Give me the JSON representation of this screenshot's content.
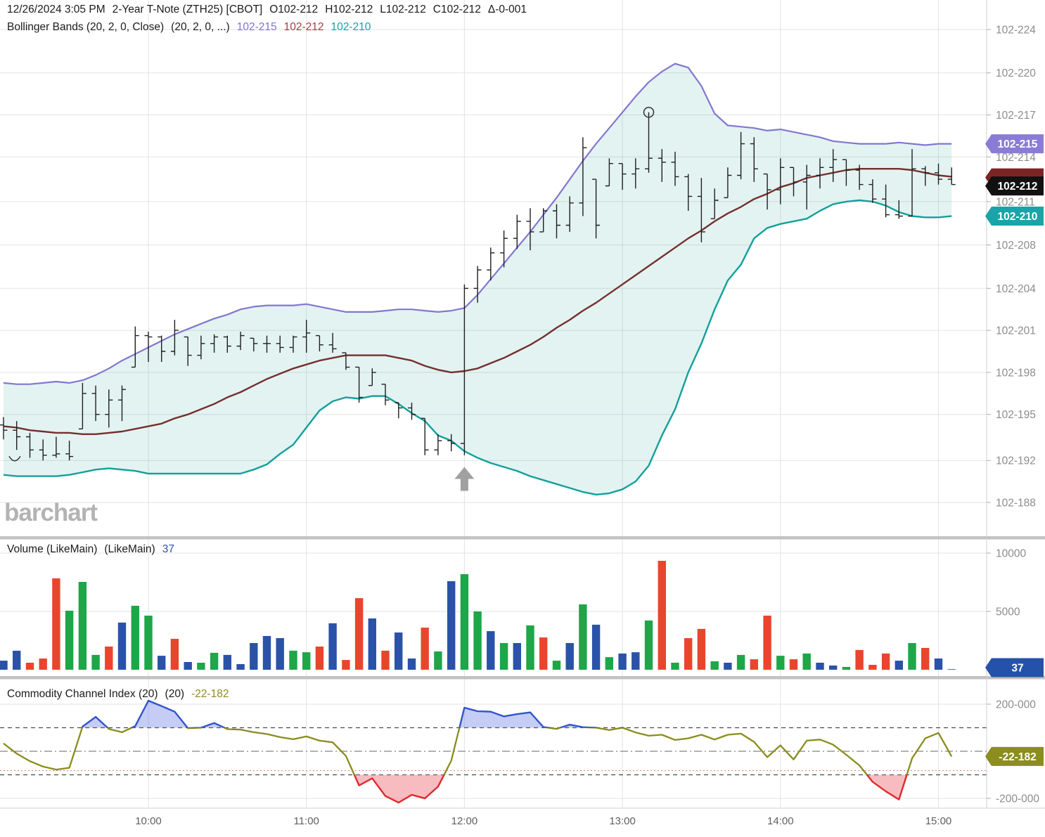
{
  "header": {
    "line1": [
      "12/26/2024 3:05 PM",
      "2-Year T-Note (ZTH25) [CBOT]",
      "O102-212",
      "H102-212",
      "L102-212",
      "C102-212",
      "Δ-0-001"
    ],
    "line2": [
      "Bollinger Bands (20, 2, 0, Close)",
      "(20, 2, 0, ...)",
      "102-215",
      "102-212",
      "102-210"
    ]
  },
  "volume_header": {
    "title": "Volume (LikeMain)",
    "params": "(LikeMain)",
    "value": "37"
  },
  "cci_header": {
    "title": "Commodity Channel Index (20)",
    "params": "(20)",
    "value": "-22-182"
  },
  "watermark": "barchart",
  "colors": {
    "up": "#1ea648",
    "down": "#e8462c",
    "neutral": "#2a52a8",
    "band_upper": "#8277d0",
    "band_middle": "#73302e",
    "band_lower": "#12a09a",
    "band_fill": "rgba(26,157,152,0.12)",
    "bar": "#1f1f1f",
    "cci_line": "#8a8c1c",
    "cci_high": "#2f55d4",
    "cci_high_fill": "rgba(110,130,235,0.40)",
    "cci_low": "#e02832",
    "cci_low_fill": "rgba(242,120,130,0.50)",
    "arrow": "#a0a0a0",
    "grid": "#e3e3e3",
    "axis": "#cfcfcf",
    "tick_text": "#8c8c8c",
    "time_text": "#5f5f5f",
    "badge_purple": "#8a7cd6",
    "badge_dark": "#111111",
    "badge_maroon": "#7a2424",
    "badge_teal": "#1aa3a8",
    "badge_blue": "#2452a8",
    "badge_olive": "#8b8d1f",
    "separator": "#c2c2c2"
  },
  "chart_data": {
    "type": "ohlc-multi-panel",
    "title": "2-Year T-Note (ZTH25) [CBOT] 5-minute bars with Bollinger Bands, Volume, CCI",
    "time_axis": {
      "labels": [
        "10:00",
        "11:00",
        "12:00",
        "13:00",
        "14:00",
        "15:00"
      ],
      "first_bar_time": "09:05",
      "interval_minutes": 5
    },
    "price_axis": {
      "unit": "102-xxx (32nds display)",
      "ticks": [
        {
          "label": "102-224",
          "value": 224.0
        },
        {
          "label": "102-220",
          "value": 220.7
        },
        {
          "label": "102-217",
          "value": 217.5
        },
        {
          "label": "102-214",
          "value": 214.3
        },
        {
          "label": "102-211",
          "value": 210.9
        },
        {
          "label": "102-208",
          "value": 207.6
        },
        {
          "label": "102-204",
          "value": 204.3
        },
        {
          "label": "102-201",
          "value": 201.1
        },
        {
          "label": "102-198",
          "value": 197.9
        },
        {
          "label": "102-195",
          "value": 194.7
        },
        {
          "label": "102-192",
          "value": 191.2
        },
        {
          "label": "102-188",
          "value": 188.0
        }
      ],
      "badges": [
        {
          "label": "102-215",
          "value": 215.3,
          "type": "upper"
        },
        {
          "label": "102-212",
          "value": 212.2,
          "type": "last"
        },
        {
          "label": "102-210",
          "value": 209.8,
          "type": "lower"
        }
      ]
    },
    "first_open": 193.9,
    "bars_hlc": [
      [
        194.5,
        192.8,
        193.5
      ],
      [
        194.2,
        192.0,
        193.0
      ],
      [
        193.3,
        191.4,
        192.0
      ],
      [
        192.8,
        191.2,
        191.6
      ],
      [
        193.0,
        191.4,
        191.7
      ],
      [
        192.7,
        191.2,
        191.5
      ],
      [
        197.1,
        193.6,
        196.3
      ],
      [
        196.9,
        194.2,
        194.7
      ],
      [
        196.6,
        193.7,
        195.8
      ],
      [
        196.9,
        194.2,
        196.6
      ],
      [
        201.4,
        198.3,
        200.7
      ],
      [
        201.0,
        198.7,
        200.6
      ],
      [
        200.7,
        198.7,
        199.5
      ],
      [
        201.9,
        199.2,
        201.1
      ],
      [
        200.6,
        198.4,
        199.2
      ],
      [
        200.7,
        198.9,
        200.1
      ],
      [
        200.8,
        199.4,
        200.6
      ],
      [
        200.7,
        199.4,
        199.9
      ],
      [
        201.0,
        199.6,
        200.7
      ],
      [
        200.5,
        199.5,
        200.1
      ],
      [
        200.7,
        199.4,
        200.1
      ],
      [
        200.7,
        199.4,
        199.8
      ],
      [
        200.7,
        199.4,
        200.6
      ],
      [
        201.9,
        199.4,
        200.9
      ],
      [
        200.7,
        199.5,
        200.0
      ],
      [
        200.9,
        199.4,
        199.7
      ],
      [
        199.4,
        198.1,
        198.3
      ],
      [
        198.3,
        195.6,
        196.0
      ],
      [
        198.2,
        196.9,
        197.9
      ],
      [
        197.0,
        195.4,
        195.8
      ],
      [
        195.6,
        194.4,
        195.2
      ],
      [
        195.6,
        194.3,
        194.7
      ],
      [
        194.4,
        191.6,
        192.0
      ],
      [
        193.2,
        191.6,
        192.7
      ],
      [
        193.2,
        191.9,
        192.5
      ],
      [
        204.6,
        191.6,
        204.3
      ],
      [
        206.0,
        203.2,
        205.7
      ],
      [
        207.4,
        204.9,
        207.0
      ],
      [
        208.7,
        205.9,
        208.1
      ],
      [
        209.9,
        207.3,
        209.4
      ],
      [
        210.4,
        207.2,
        208.6
      ],
      [
        210.4,
        208.6,
        210.2
      ],
      [
        210.7,
        208.1,
        209.1
      ],
      [
        211.3,
        208.6,
        210.8
      ],
      [
        215.8,
        209.8,
        215.0
      ],
      [
        212.6,
        208.1,
        209.1
      ],
      [
        214.2,
        212.1,
        213.8
      ],
      [
        213.8,
        211.8,
        213.0
      ],
      [
        214.2,
        211.9,
        213.4
      ],
      [
        217.7,
        213.1,
        214.2
      ],
      [
        214.9,
        212.4,
        213.9
      ],
      [
        214.7,
        212.1,
        212.8
      ],
      [
        213.0,
        210.2,
        211.3
      ],
      [
        212.7,
        207.8,
        208.6
      ],
      [
        211.9,
        209.6,
        211.0
      ],
      [
        213.5,
        211.2,
        212.9
      ],
      [
        216.2,
        212.6,
        215.3
      ],
      [
        215.8,
        212.4,
        213.4
      ],
      [
        213.0,
        210.3,
        211.8
      ],
      [
        214.2,
        210.7,
        213.5
      ],
      [
        213.5,
        211.3,
        212.4
      ],
      [
        213.7,
        210.3,
        212.9
      ],
      [
        214.2,
        211.9,
        213.5
      ],
      [
        214.9,
        212.4,
        214.1
      ],
      [
        214.1,
        212.1,
        213.3
      ],
      [
        213.7,
        211.8,
        212.2
      ],
      [
        212.6,
        210.8,
        211.1
      ],
      [
        212.2,
        209.7,
        209.9
      ],
      [
        211.0,
        209.6,
        209.8
      ],
      [
        214.9,
        209.8,
        213.4
      ],
      [
        213.6,
        212.1,
        213.1
      ],
      [
        213.8,
        212.2,
        212.6
      ],
      [
        213.5,
        212.2,
        212.2
      ]
    ],
    "bands": {
      "upper": [
        197.1,
        197.0,
        197.0,
        197.1,
        197.2,
        197.1,
        197.3,
        197.7,
        198.2,
        198.8,
        199.3,
        199.8,
        200.3,
        200.8,
        201.2,
        201.6,
        202.0,
        202.3,
        202.7,
        202.9,
        203.0,
        203.0,
        203.0,
        203.1,
        202.9,
        202.7,
        202.5,
        202.5,
        202.5,
        202.6,
        202.7,
        202.7,
        202.6,
        202.5,
        202.6,
        202.8,
        203.8,
        205.0,
        206.2,
        207.4,
        208.6,
        209.9,
        211.2,
        212.6,
        214.0,
        215.3,
        216.5,
        217.7,
        218.9,
        220.0,
        220.8,
        221.4,
        221.1,
        219.7,
        217.6,
        216.7,
        216.6,
        216.5,
        216.3,
        216.4,
        216.2,
        216.0,
        215.8,
        215.5,
        215.4,
        215.3,
        215.3,
        215.3,
        215.4,
        215.3,
        215.2,
        215.3,
        215.3
      ],
      "middle": [
        193.8,
        193.7,
        193.5,
        193.4,
        193.3,
        193.3,
        193.2,
        193.2,
        193.3,
        193.4,
        193.6,
        193.8,
        194.0,
        194.4,
        194.7,
        195.1,
        195.5,
        196.0,
        196.4,
        196.9,
        197.4,
        197.8,
        198.2,
        198.5,
        198.8,
        199.0,
        199.2,
        199.2,
        199.2,
        199.2,
        199.0,
        198.8,
        198.4,
        198.1,
        197.9,
        198.0,
        198.2,
        198.6,
        199.0,
        199.5,
        200.0,
        200.6,
        201.3,
        201.9,
        202.6,
        203.2,
        203.9,
        204.6,
        205.3,
        206.0,
        206.7,
        207.4,
        208.1,
        208.7,
        209.4,
        210.0,
        210.5,
        211.1,
        211.5,
        212.0,
        212.3,
        212.7,
        212.9,
        213.1,
        213.3,
        213.4,
        213.4,
        213.4,
        213.4,
        213.3,
        213.1,
        212.9,
        212.8
      ],
      "lower": [
        190.1,
        190.0,
        190.0,
        190.0,
        190.0,
        190.1,
        190.3,
        190.5,
        190.6,
        190.5,
        190.4,
        190.2,
        190.2,
        190.2,
        190.2,
        190.2,
        190.2,
        190.2,
        190.2,
        190.5,
        190.9,
        191.7,
        192.4,
        193.7,
        195.0,
        195.7,
        196.0,
        195.9,
        196.1,
        196.1,
        195.5,
        194.8,
        194.2,
        193.1,
        192.7,
        191.9,
        191.4,
        191.0,
        190.7,
        190.4,
        190.0,
        189.7,
        189.4,
        189.1,
        188.8,
        188.6,
        188.7,
        189.0,
        189.6,
        190.8,
        193.1,
        195.1,
        197.9,
        200.1,
        202.7,
        204.9,
        206.1,
        208.1,
        208.9,
        209.2,
        209.4,
        209.6,
        210.2,
        210.7,
        210.9,
        211.0,
        210.9,
        210.6,
        210.1,
        209.8,
        209.7,
        209.7,
        209.8
      ]
    },
    "volume": {
      "values": [
        780,
        1630,
        600,
        965,
        7830,
        5060,
        7530,
        1270,
        1990,
        4040,
        5480,
        4640,
        1200,
        2650,
        660,
        600,
        1450,
        1270,
        480,
        2290,
        2890,
        2710,
        1630,
        1500,
        1990,
        3980,
        840,
        6140,
        4400,
        1630,
        3190,
        965,
        3610,
        1570,
        7590,
        8190,
        5000,
        3310,
        2290,
        2290,
        3800,
        2770,
        780,
        2290,
        5600,
        3860,
        1080,
        1390,
        1500,
        4220,
        9340,
        600,
        2710,
        3500,
        720,
        600,
        1270,
        900,
        4640,
        1200,
        900,
        1390,
        600,
        360,
        240,
        1690,
        420,
        1390,
        780,
        2290,
        1870,
        965,
        37
      ],
      "colors": [
        "b",
        "b",
        "r",
        "r",
        "r",
        "g",
        "g",
        "g",
        "r",
        "b",
        "g",
        "g",
        "b",
        "r",
        "b",
        "g",
        "g",
        "b",
        "b",
        "b",
        "b",
        "b",
        "g",
        "g",
        "r",
        "b",
        "r",
        "r",
        "b",
        "r",
        "b",
        "b",
        "r",
        "g",
        "b",
        "g",
        "g",
        "b",
        "g",
        "b",
        "g",
        "r",
        "g",
        "b",
        "g",
        "b",
        "g",
        "b",
        "b",
        "g",
        "r",
        "g",
        "r",
        "r",
        "g",
        "b",
        "g",
        "r",
        "r",
        "g",
        "r",
        "g",
        "b",
        "b",
        "g",
        "r",
        "r",
        "r",
        "b",
        "g",
        "r",
        "b",
        "b"
      ],
      "ticks": [
        {
          "label": "10000",
          "value": 10000
        },
        {
          "label": "5000",
          "value": 5000
        }
      ],
      "badge": {
        "label": "37",
        "value": 180
      }
    },
    "cci": {
      "values": [
        33,
        -10,
        -42,
        -65,
        -78,
        -70,
        105,
        146,
        95,
        81,
        107,
        215,
        192,
        168,
        98,
        100,
        120,
        94,
        92,
        81,
        73,
        60,
        51,
        63,
        45,
        38,
        -20,
        -145,
        -115,
        -190,
        -218,
        -185,
        -200,
        -150,
        -40,
        185,
        170,
        168,
        148,
        158,
        165,
        103,
        95,
        113,
        102,
        100,
        90,
        100,
        80,
        66,
        70,
        48,
        55,
        70,
        50,
        70,
        75,
        40,
        -25,
        25,
        -35,
        45,
        50,
        28,
        -15,
        -60,
        -130,
        -170,
        -205,
        -30,
        55,
        78,
        -22
      ],
      "thresholds": {
        "upper": 100,
        "zero": 0,
        "lower": -100,
        "red_dotted": -82
      },
      "ticks": [
        {
          "label": "200-000",
          "value": 200
        },
        {
          "label": "-200-000",
          "value": -200
        }
      ],
      "badge": {
        "label": "-22-182",
        "value": -22.182
      }
    },
    "markers": [
      {
        "type": "arrow-up",
        "bar": 35,
        "value": 190.7
      },
      {
        "type": "circle",
        "bar": 49,
        "value": 217.7
      },
      {
        "type": "smile",
        "bar": 0.85,
        "value": 191.3
      }
    ]
  }
}
